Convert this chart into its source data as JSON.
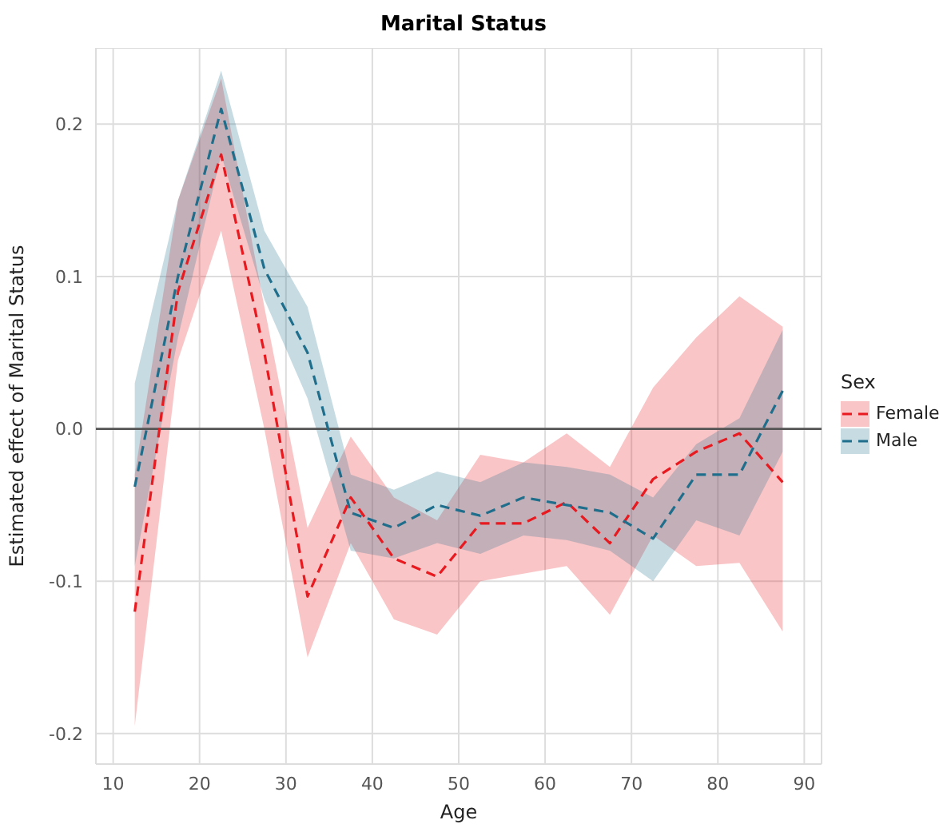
{
  "chart_data": {
    "type": "line",
    "title": "Marital Status",
    "xlabel": "Age",
    "ylabel": "Estimated effect of Marital Status",
    "legend_title": "Sex",
    "x": [
      12.5,
      17.5,
      22.5,
      27.5,
      32.5,
      37.5,
      42.5,
      47.5,
      52.5,
      57.5,
      62.5,
      67.5,
      72.5,
      77.5,
      82.5,
      87.5
    ],
    "series": [
      {
        "name": "Female",
        "color": "#e8191f",
        "values": [
          -0.12,
          0.09,
          0.18,
          0.05,
          -0.11,
          -0.045,
          -0.085,
          -0.097,
          -0.062,
          -0.062,
          -0.048,
          -0.075,
          -0.033,
          -0.015,
          -0.003,
          -0.035
        ],
        "lower": [
          -0.195,
          0.045,
          0.13,
          0.0,
          -0.15,
          -0.075,
          -0.125,
          -0.135,
          -0.1,
          -0.095,
          -0.09,
          -0.122,
          -0.07,
          -0.09,
          -0.088,
          -0.133
        ],
        "upper": [
          -0.03,
          0.15,
          0.23,
          0.08,
          -0.065,
          -0.005,
          -0.045,
          -0.06,
          -0.017,
          -0.022,
          -0.003,
          -0.025,
          0.027,
          0.06,
          0.087,
          0.067
        ]
      },
      {
        "name": "Male",
        "color": "#1f6e8c",
        "values": [
          -0.038,
          0.1,
          0.21,
          0.105,
          0.05,
          -0.055,
          -0.065,
          -0.05,
          -0.057,
          -0.045,
          -0.05,
          -0.055,
          -0.072,
          -0.03,
          -0.03,
          0.025
        ],
        "lower": [
          -0.09,
          0.06,
          0.18,
          0.085,
          0.02,
          -0.08,
          -0.085,
          -0.075,
          -0.082,
          -0.07,
          -0.073,
          -0.08,
          -0.1,
          -0.06,
          -0.07,
          -0.015
        ],
        "upper": [
          0.03,
          0.15,
          0.235,
          0.13,
          0.08,
          -0.03,
          -0.04,
          -0.028,
          -0.035,
          -0.022,
          -0.025,
          -0.03,
          -0.045,
          -0.01,
          0.007,
          0.065
        ]
      }
    ],
    "xlim": [
      8,
      92
    ],
    "xticks": [
      10,
      20,
      30,
      40,
      50,
      60,
      70,
      80,
      90
    ],
    "ylim": [
      -0.22,
      0.25
    ],
    "yticks": [
      -0.2,
      -0.1,
      {
        "value": 0,
        "label": "0.0"
      },
      0.1,
      0.2
    ],
    "ref_lines": [
      {
        "axis": "y",
        "value": 0,
        "color": "#555555"
      }
    ],
    "grid": true,
    "legend": "right",
    "line_style": "dashed",
    "marker": "none"
  }
}
